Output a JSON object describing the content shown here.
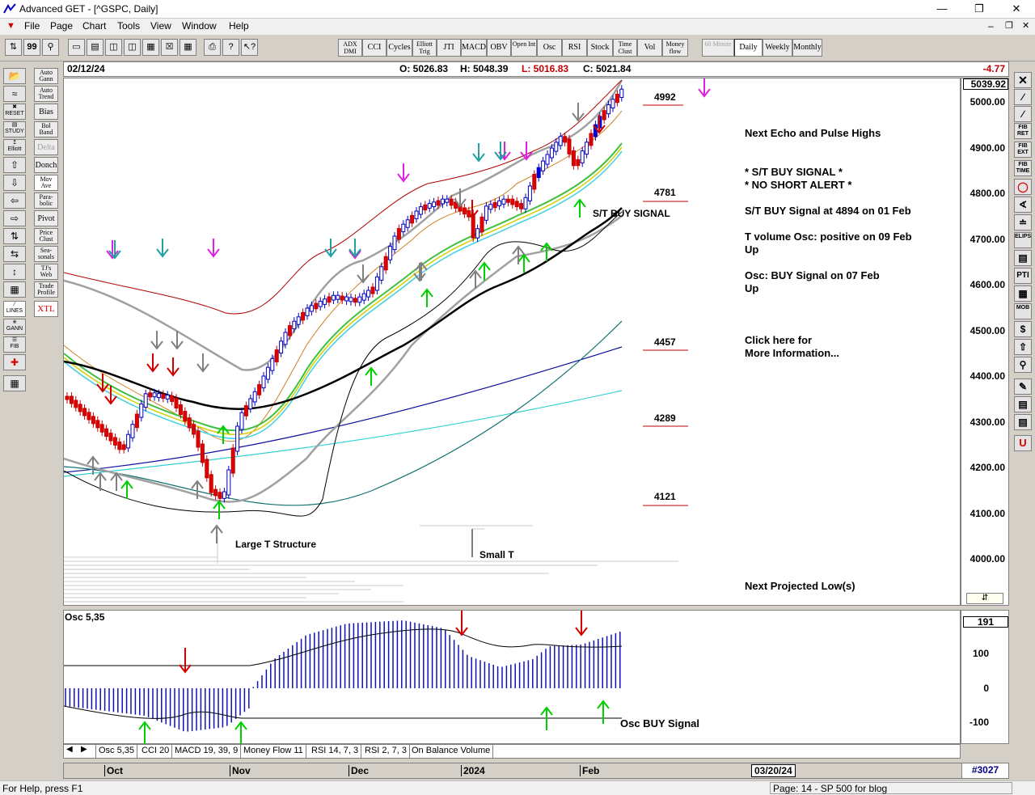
{
  "window": {
    "title": "Advanced GET - [^GSPC, Daily]"
  },
  "menu": [
    "File",
    "Page",
    "Chart",
    "Tools",
    "View",
    "Window",
    "Help"
  ],
  "toolbar_study_buttons": [
    "ADX DMI",
    "CCI",
    "Cycles",
    "Elliott Trig",
    "JTI",
    "MACD",
    "OBV",
    "Open Int",
    "Osc",
    "RSI",
    "Stock",
    "Time Clust",
    "Vol",
    "Money flow"
  ],
  "timeframe_buttons": [
    "60 Minute",
    "Daily",
    "Weekly",
    "Monthly"
  ],
  "left_tools": [
    "Auto Gann",
    "Auto Trend",
    "Bias",
    "Bol Band",
    "Delta",
    "Donch",
    "Mov Ave",
    "Para-bolic",
    "Pivot",
    "Price Clust",
    "Sea-sonals",
    "TJ's Web",
    "Trade Profile",
    "XTL"
  ],
  "left_icon_labels": [
    "RESET",
    "STUDY",
    "Elliott",
    "LINES",
    "GANN",
    "FIB"
  ],
  "right_tools": [
    "FIB RET",
    "FIB EXT",
    "FIB TIME",
    "ELIPS",
    "PTI",
    "MOB"
  ],
  "infobar": {
    "date": "02/12/24",
    "open": "O: 5026.83",
    "high": "H: 5048.39",
    "low": "L: 5016.83",
    "close": "C: 5021.84",
    "change": "-4.77"
  },
  "price_axis": {
    "current": "5039.92",
    "ticks": [
      "5000.00",
      "4900.00",
      "4800.00",
      "4700.00",
      "4600.00",
      "4500.00",
      "4400.00",
      "4300.00",
      "4200.00",
      "4100.00",
      "4000.00"
    ]
  },
  "projections": [
    "4992",
    "4781",
    "4457",
    "4289",
    "4121"
  ],
  "chart_labels": {
    "st_buy": "S/T BUY SIGNAL",
    "large_t": "Large T Structure",
    "small_t": "Small T"
  },
  "notes": {
    "echo": "Next Echo and Pulse Highs",
    "st_buy_signal": "* S/T BUY SIGNAL *",
    "no_short": "* NO SHORT ALERT *",
    "st_buy_at": "S/T BUY Signal at 4894 on 01 Feb",
    "tvol": "T volume Osc: positive on 09 Feb",
    "tvol_dir": "Up",
    "osc": "Osc: BUY Signal on 07 Feb",
    "osc_dir": "Up",
    "click1": "Click here for",
    "click2": "More Information...",
    "proj_low": "Next Projected Low(s)"
  },
  "osc": {
    "label": "Osc 5,35",
    "value": "191",
    "ticks": [
      "100",
      "0",
      "-100"
    ],
    "buy_signal": "Osc BUY Signal"
  },
  "tabs": [
    "Osc 5,35",
    "CCI 20",
    "MACD 19, 39, 9",
    "Money Flow 11",
    "RSI 14, 7, 3",
    "RSI 2, 7, 3",
    "On Balance Volume"
  ],
  "dates": {
    "months": [
      "Oct",
      "Nov",
      "Dec",
      "2024",
      "Feb"
    ],
    "future_date": "03/20/24",
    "bar_count": "#3027"
  },
  "status": {
    "help": "For Help, press F1",
    "page": "Page: 14 - SP 500 for blog"
  },
  "colors": {
    "buy_arrow": "#00d000",
    "sell_arrow": "#d00000",
    "magenta_arrow": "#e020e0",
    "teal_arrow": "#20a0a0",
    "up_candle": "#ffffff",
    "down_candle": "#e00000",
    "proj_line": "#c00000"
  }
}
